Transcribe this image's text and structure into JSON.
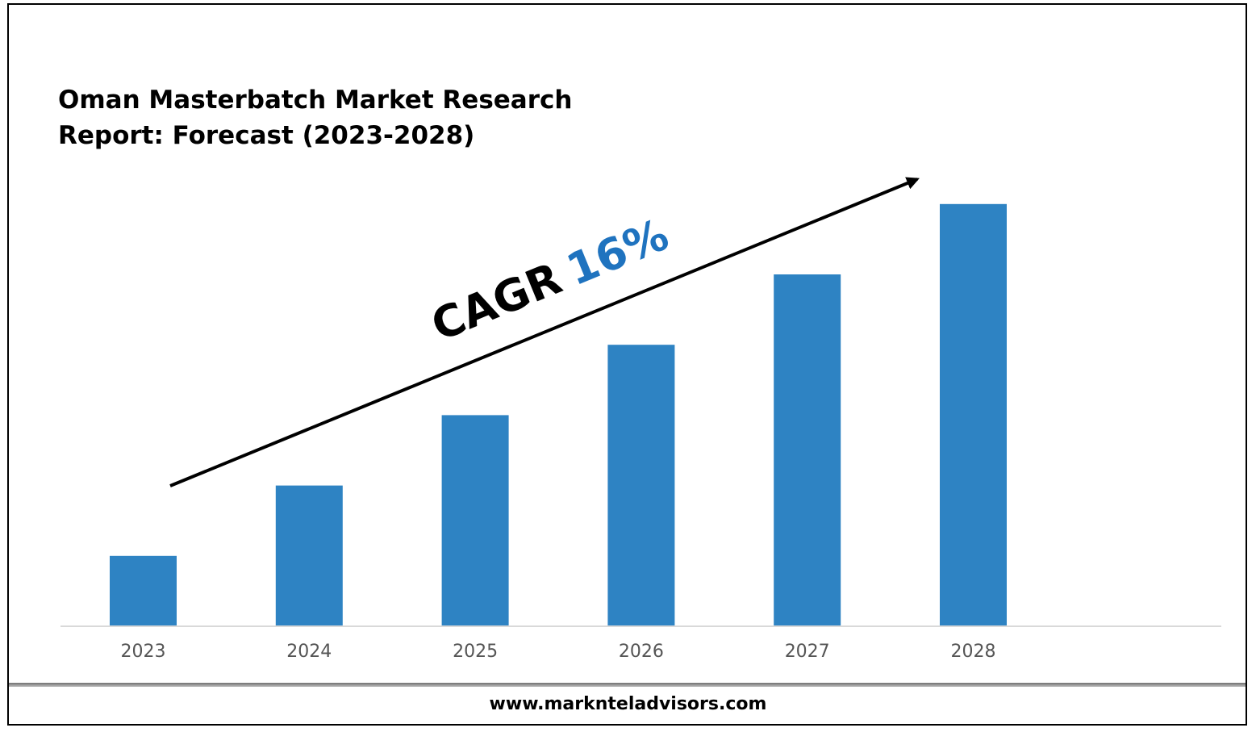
{
  "chart_data": {
    "type": "bar",
    "title": "Oman Masterbatch Market Research Report: Forecast (2023-2028)",
    "categories": [
      "2023",
      "2024",
      "2025",
      "2026",
      "2027",
      "2028"
    ],
    "values": [
      1,
      2,
      3,
      4,
      5,
      6
    ],
    "bar_color": "#2E83C3",
    "grid": false,
    "annotation": {
      "prefix": "CAGR",
      "value": "16%",
      "value_color": "#1F73BF"
    }
  },
  "title_line1": "Oman Masterbatch Market Research",
  "title_line2": "Report: Forecast (2023-2028)",
  "footer": {
    "url": "www.marknteladvisors.com"
  }
}
